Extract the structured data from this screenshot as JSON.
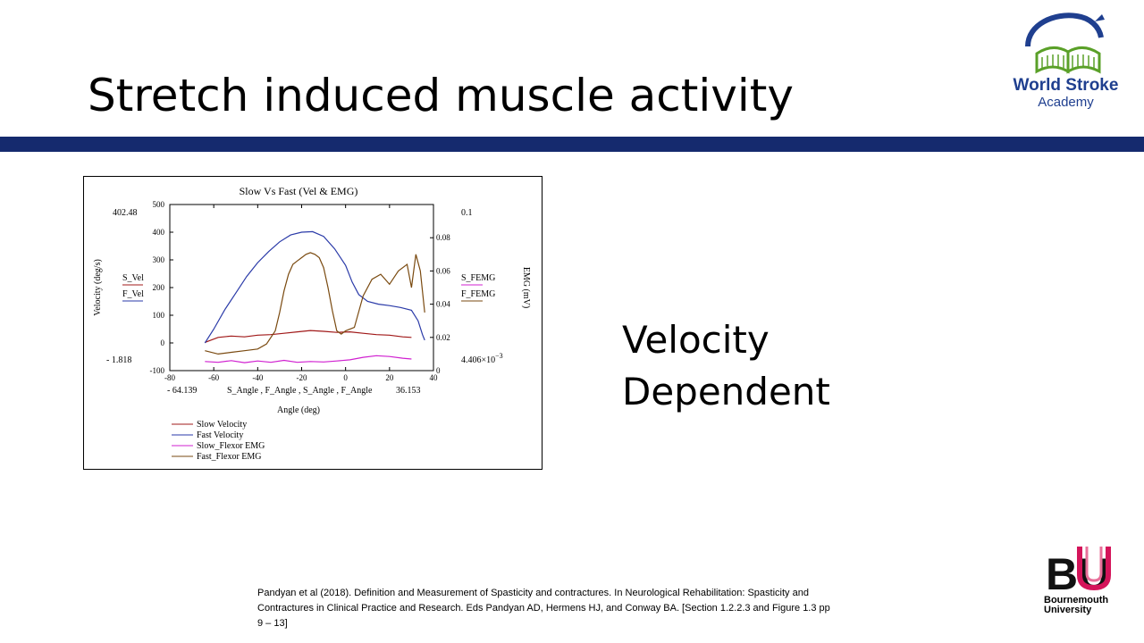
{
  "slide": {
    "title": "Stretch induced muscle activity",
    "side_text_line1": "Velocity",
    "side_text_line2": "Dependent",
    "citation_line1": "Pandyan et al (2018). Definition and Measurement of Spasticity and contractures. In Neurological Rehabilitation: Spasticity and",
    "citation_line2": "Contractures in Clinical Practice and Research. Eds Pandyan AD, Hermens HJ, and Conway BA. [Section 1.2.2.3 and Figure 1.3 pp",
    "citation_line3": "9 – 13]"
  },
  "logo": {
    "line1": "World Stroke",
    "line2": "Academy"
  },
  "bu_logo": {
    "mark": "BU",
    "line1": "Bournemouth",
    "line2": "University"
  },
  "colors": {
    "bar": "#152a6e",
    "slow_velocity": "#a01818",
    "fast_velocity": "#2a3aa8",
    "slow_emg": "#d020d0",
    "fast_emg": "#7a4a10"
  },
  "chart_data": {
    "type": "line",
    "title": "Slow Vs Fast (Vel & EMG)",
    "xlabel": "Angle (deg)",
    "ylabel_left": "Velocity (deg/s)",
    "ylabel_right": "EMG (mV)",
    "xlim": [
      -80,
      40
    ],
    "ylim_left": [
      -100,
      500
    ],
    "ylim_right": [
      0,
      0.1
    ],
    "x_ticks": [
      "-80",
      "-60",
      "-40",
      "-20",
      "0",
      "20",
      "40"
    ],
    "y_left_ticks": [
      "-100",
      "0",
      "100",
      "200",
      "300",
      "400",
      "500"
    ],
    "y_right_ticks": [
      "0",
      "0.02",
      "0.04",
      "0.06",
      "0.08"
    ],
    "y_right_top": "0.1",
    "left_upper_readout": "402.48",
    "left_lower_readout": "- 1.818",
    "right_lower_readout": "4.406×10",
    "right_lower_exp": "−3",
    "x_left_readout": "- 64.139",
    "x_right_readout": "36.153",
    "x_var_label": "S_Angle , F_Angle , S_Angle , F_Angle",
    "left_var1": "S_Vel",
    "left_var2": "F_Vel",
    "right_var1": "S_FEMG",
    "right_var2": "F_FEMG",
    "series": [
      {
        "name": "Slow Velocity",
        "axis": "left",
        "x": [
          -64,
          -58,
          -52,
          -46,
          -40,
          -34,
          -28,
          -22,
          -16,
          -10,
          -4,
          2,
          8,
          14,
          20,
          26,
          30
        ],
        "y": [
          2,
          20,
          25,
          22,
          28,
          30,
          35,
          40,
          45,
          42,
          38,
          40,
          35,
          30,
          28,
          22,
          20
        ]
      },
      {
        "name": "Fast Velocity",
        "axis": "left",
        "x": [
          -64,
          -60,
          -55,
          -50,
          -45,
          -40,
          -35,
          -30,
          -25,
          -20,
          -15,
          -10,
          -5,
          0,
          3,
          6,
          10,
          15,
          20,
          25,
          30,
          33,
          35,
          36
        ],
        "y": [
          0,
          50,
          120,
          180,
          240,
          290,
          330,
          365,
          390,
          400,
          402,
          385,
          340,
          280,
          220,
          175,
          150,
          140,
          135,
          128,
          118,
          80,
          30,
          10
        ]
      },
      {
        "name": "Slow_Flexor EMG",
        "axis": "right",
        "x": [
          -64,
          -58,
          -52,
          -46,
          -40,
          -34,
          -28,
          -22,
          -16,
          -10,
          -4,
          2,
          8,
          14,
          20,
          26,
          30
        ],
        "y": [
          0.0055,
          0.005,
          0.006,
          0.0048,
          0.0058,
          0.005,
          0.0062,
          0.005,
          0.0055,
          0.0052,
          0.0058,
          0.0065,
          0.008,
          0.009,
          0.0085,
          0.0075,
          0.007
        ]
      },
      {
        "name": "Fast_Flexor EMG",
        "axis": "right",
        "x": [
          -64,
          -58,
          -52,
          -46,
          -40,
          -36,
          -32,
          -30,
          -28,
          -26,
          -24,
          -22,
          -20,
          -18,
          -16,
          -14,
          -12,
          -10,
          -8,
          -6,
          -4,
          -2,
          0,
          4,
          8,
          12,
          16,
          20,
          24,
          28,
          30,
          32,
          34,
          36
        ],
        "y": [
          0.012,
          0.01,
          0.011,
          0.012,
          0.013,
          0.016,
          0.024,
          0.035,
          0.048,
          0.058,
          0.064,
          0.066,
          0.068,
          0.07,
          0.071,
          0.07,
          0.068,
          0.062,
          0.05,
          0.036,
          0.024,
          0.022,
          0.024,
          0.026,
          0.045,
          0.055,
          0.058,
          0.052,
          0.06,
          0.064,
          0.05,
          0.07,
          0.06,
          0.035
        ]
      }
    ],
    "legend": [
      "Slow Velocity",
      "Fast Velocity",
      "Slow_Flexor EMG",
      "Fast_Flexor EMG"
    ],
    "legend_position": "bottom-left"
  }
}
